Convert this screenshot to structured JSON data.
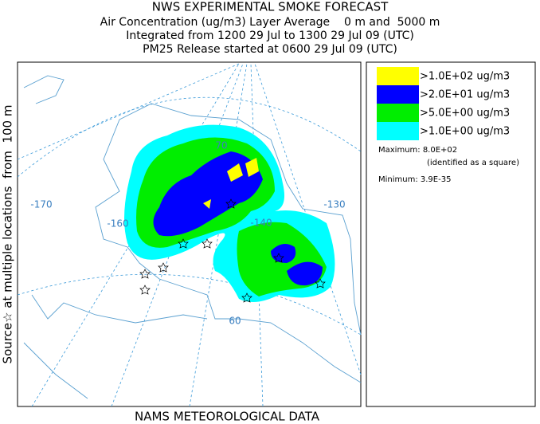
{
  "header": {
    "title": "NWS EXPERIMENTAL SMOKE FORECAST",
    "lines": [
      "Air Concentration (ug/m3) Layer Average    0 m and  5000 m",
      "Integrated from 1200 29 Jul to 1300 29 Jul 09 (UTC)",
      "PM25 Release started at 0600 29 Jul 09 (UTC)"
    ]
  },
  "side_label": "Source☆ at multiple locations  from  100 m",
  "footer": "NAMS METEOROLOGICAL DATA",
  "legend": {
    "items": [
      {
        "label": ">1.0E+02 ug/m3",
        "color": "#ffff00"
      },
      {
        "label": ">2.0E+01 ug/m3",
        "color": "#0000ff"
      },
      {
        "label": ">5.0E+00 ug/m3",
        "color": "#00ee00"
      },
      {
        "label": ">1.0E+00 ug/m3",
        "color": "#00ffff"
      }
    ],
    "maximum": "Maximum: 8.0E+02",
    "maximum_note": "(identified as a square)",
    "minimum": "Minimum: 3.9E-35"
  },
  "map": {
    "labels": [
      "-170",
      "-160",
      "-140",
      "-130",
      "70",
      "60"
    ]
  }
}
